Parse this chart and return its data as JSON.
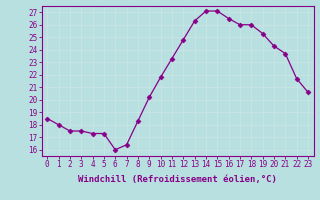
{
  "x": [
    0,
    1,
    2,
    3,
    4,
    5,
    6,
    7,
    8,
    9,
    10,
    11,
    12,
    13,
    14,
    15,
    16,
    17,
    18,
    19,
    20,
    21,
    22,
    23
  ],
  "y": [
    18.5,
    18.0,
    17.5,
    17.5,
    17.3,
    17.3,
    16.0,
    16.4,
    18.3,
    20.2,
    21.8,
    23.3,
    24.8,
    26.3,
    27.1,
    27.1,
    26.5,
    26.0,
    26.0,
    25.3,
    24.3,
    23.7,
    21.7,
    20.6
  ],
  "line_color": "#880088",
  "marker": "D",
  "marker_size": 2.5,
  "bg_color": "#b8e0e0",
  "grid_color": "#d0ecec",
  "xlabel": "Windchill (Refroidissement éolien,°C)",
  "xlim": [
    -0.5,
    23.5
  ],
  "ylim": [
    15.5,
    27.5
  ],
  "yticks": [
    16,
    17,
    18,
    19,
    20,
    21,
    22,
    23,
    24,
    25,
    26,
    27
  ],
  "xticks": [
    0,
    1,
    2,
    3,
    4,
    5,
    6,
    7,
    8,
    9,
    10,
    11,
    12,
    13,
    14,
    15,
    16,
    17,
    18,
    19,
    20,
    21,
    22,
    23
  ],
  "tick_color": "#880088",
  "label_color": "#880088",
  "label_fontsize": 6.5,
  "tick_fontsize": 5.5,
  "spine_color": "#880088"
}
